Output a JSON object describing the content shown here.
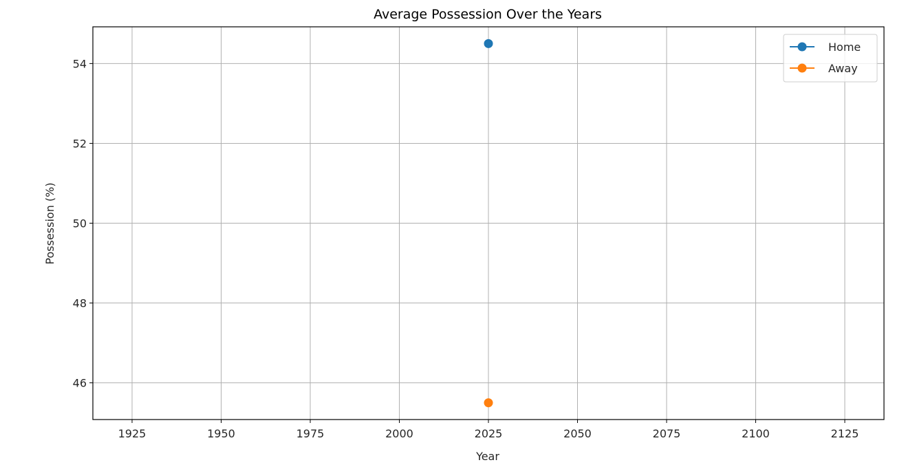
{
  "chart_data": {
    "type": "line",
    "title": "Average Possession Over the Years",
    "xlabel": "Year",
    "ylabel": "Possession (%)",
    "xlim": [
      1914,
      2136
    ],
    "ylim": [
      45.08,
      54.92
    ],
    "xticks": [
      1925,
      1950,
      1975,
      2000,
      2025,
      2050,
      2075,
      2100,
      2125
    ],
    "yticks": [
      46,
      48,
      50,
      52,
      54
    ],
    "grid": true,
    "legend_position": "top-right",
    "series": [
      {
        "name": "Home",
        "color": "#1f77b4",
        "marker": "circle",
        "x": [
          2025
        ],
        "y": [
          54.5
        ]
      },
      {
        "name": "Away",
        "color": "#ff7f0e",
        "marker": "circle",
        "x": [
          2025
        ],
        "y": [
          45.5
        ]
      }
    ]
  }
}
